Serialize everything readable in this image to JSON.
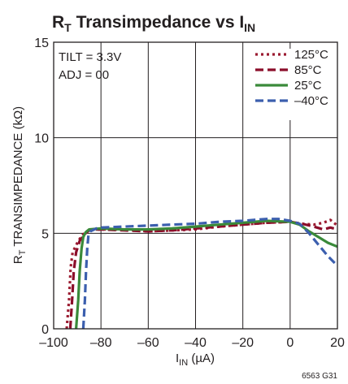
{
  "title": {
    "main": "R",
    "sub": "T",
    "mid": " Transimpedance vs I",
    "sub2": "IN"
  },
  "figure_code": "6563 G31",
  "annotations": [
    "TILT = 3.3V",
    "ADJ = 00"
  ],
  "colors": {
    "125°C": "#9b1b30",
    "85°C": "#8b0d2a",
    "25°C": "#3a8a3a",
    "-40°C": "#3c5fae",
    "grid": "#231f20"
  },
  "chart_data": {
    "type": "line",
    "title": "RT Transimpedance vs IIN",
    "xlabel": {
      "main": "I",
      "sub": "IN",
      "unit": " (µA)"
    },
    "ylabel": {
      "main": "R",
      "sub": "T",
      "rest": " TRANSIMPEDANCE (kΩ)"
    },
    "xlim": [
      -100,
      20
    ],
    "ylim": [
      0,
      15
    ],
    "x_ticks": [
      -100,
      -80,
      -60,
      -40,
      -20,
      0,
      20
    ],
    "x_tick_labels": [
      "–100",
      "–80",
      "–60",
      "–40",
      "–20",
      "0",
      "20"
    ],
    "y_ticks": [
      0,
      5,
      10,
      15
    ],
    "y_tick_labels": [
      "0",
      "5",
      "10",
      "15"
    ],
    "grid": true,
    "legend_position": "top-right",
    "series": [
      {
        "name": "125°C",
        "dash": "dotted",
        "points": [
          [
            -94.5,
            0
          ],
          [
            -93.5,
            1.5
          ],
          [
            -92.8,
            3.2
          ],
          [
            -92,
            4
          ],
          [
            -90,
            4.5
          ],
          [
            -88,
            4.9
          ],
          [
            -86,
            5.1
          ],
          [
            -84,
            5.2
          ],
          [
            -80,
            5.2
          ],
          [
            -70,
            5.2
          ],
          [
            -60,
            5.1
          ],
          [
            -50,
            5.15
          ],
          [
            -40,
            5.2
          ],
          [
            -30,
            5.35
          ],
          [
            -20,
            5.45
          ],
          [
            -10,
            5.55
          ],
          [
            0,
            5.6
          ],
          [
            5,
            5.5
          ],
          [
            10,
            5.45
          ],
          [
            14,
            5.55
          ],
          [
            17,
            5.7
          ],
          [
            20,
            5.4
          ]
        ]
      },
      {
        "name": "85°C",
        "dash": "dashed",
        "points": [
          [
            -93,
            0
          ],
          [
            -92.2,
            1.5
          ],
          [
            -91.5,
            3
          ],
          [
            -90.5,
            4
          ],
          [
            -89,
            4.6
          ],
          [
            -87,
            4.95
          ],
          [
            -85,
            5.15
          ],
          [
            -82,
            5.2
          ],
          [
            -80,
            5.2
          ],
          [
            -70,
            5.15
          ],
          [
            -60,
            5.1
          ],
          [
            -50,
            5.15
          ],
          [
            -40,
            5.25
          ],
          [
            -30,
            5.35
          ],
          [
            -20,
            5.45
          ],
          [
            -10,
            5.55
          ],
          [
            0,
            5.6
          ],
          [
            5,
            5.5
          ],
          [
            10,
            5.35
          ],
          [
            14,
            5.2
          ],
          [
            17,
            5.3
          ],
          [
            20,
            5.2
          ]
        ]
      },
      {
        "name": "25°C",
        "dash": "solid",
        "points": [
          [
            -90.5,
            0
          ],
          [
            -89.6,
            1.5
          ],
          [
            -89,
            3
          ],
          [
            -88.2,
            4.2
          ],
          [
            -87.5,
            4.8
          ],
          [
            -86.5,
            5.05
          ],
          [
            -85,
            5.2
          ],
          [
            -80,
            5.25
          ],
          [
            -70,
            5.2
          ],
          [
            -60,
            5.2
          ],
          [
            -50,
            5.25
          ],
          [
            -40,
            5.35
          ],
          [
            -30,
            5.45
          ],
          [
            -20,
            5.55
          ],
          [
            -10,
            5.65
          ],
          [
            0,
            5.6
          ],
          [
            4,
            5.45
          ],
          [
            8,
            5.1
          ],
          [
            12,
            4.8
          ],
          [
            16,
            4.5
          ],
          [
            20,
            4.3
          ]
        ]
      },
      {
        "name": "–40°C",
        "dash": "dashed",
        "points": [
          [
            -87.5,
            0
          ],
          [
            -86.8,
            1.5
          ],
          [
            -86.3,
            3
          ],
          [
            -85.8,
            4.2
          ],
          [
            -85.3,
            4.9
          ],
          [
            -84.5,
            5.1
          ],
          [
            -82,
            5.25
          ],
          [
            -80,
            5.3
          ],
          [
            -70,
            5.35
          ],
          [
            -60,
            5.4
          ],
          [
            -50,
            5.45
          ],
          [
            -40,
            5.5
          ],
          [
            -30,
            5.6
          ],
          [
            -20,
            5.65
          ],
          [
            -10,
            5.75
          ],
          [
            -5,
            5.75
          ],
          [
            0,
            5.65
          ],
          [
            4,
            5.5
          ],
          [
            8,
            5
          ],
          [
            12,
            4.4
          ],
          [
            16,
            3.8
          ],
          [
            20,
            3.3
          ]
        ]
      }
    ]
  }
}
